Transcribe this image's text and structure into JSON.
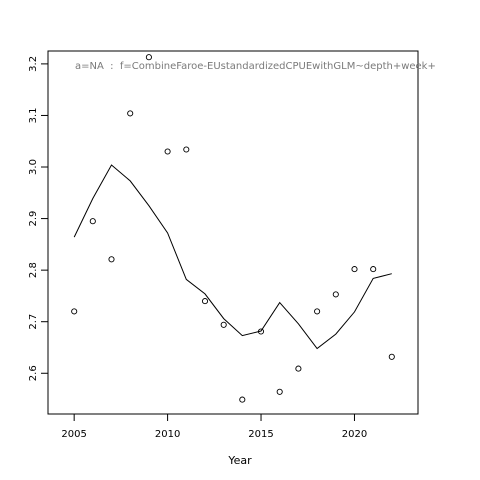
{
  "chart_data": {
    "type": "scatter",
    "xlabel": "Year",
    "ylabel": "",
    "annotation": "a=NA  :  f=CombineFaroe-EUstandardizedCPUEwithGLM~depth+week+",
    "xlim": [
      2003.6,
      2023.4
    ],
    "ylim": [
      2.521,
      3.225
    ],
    "x_ticks": [
      2005,
      2010,
      2015,
      2020
    ],
    "y_ticks": [
      2.6,
      2.7,
      2.8,
      2.9,
      3.0,
      3.1,
      3.2
    ],
    "x_tick_labels": [
      "2005",
      "2010",
      "2015",
      "2020"
    ],
    "y_tick_labels": [
      "2.6",
      "2.7",
      "2.8",
      "2.9",
      "3.0",
      "3.1",
      "3.2"
    ],
    "series": [
      {
        "type": "scatter",
        "marker": "open-circle",
        "x": [
          2005,
          2006,
          2007,
          2008,
          2009,
          2010,
          2011,
          2012,
          2013,
          2014,
          2015,
          2016,
          2017,
          2018,
          2019,
          2020,
          2021,
          2022
        ],
        "y": [
          2.72,
          2.895,
          2.821,
          3.104,
          3.213,
          3.03,
          3.034,
          2.74,
          2.694,
          2.549,
          2.681,
          2.564,
          2.609,
          2.72,
          2.753,
          2.802,
          2.802,
          2.632
        ]
      },
      {
        "type": "line",
        "x": [
          2005,
          2006,
          2007,
          2008,
          2009,
          2010,
          2011,
          2012,
          2013,
          2014,
          2015,
          2016,
          2017,
          2018,
          2019,
          2020,
          2021,
          2022
        ],
        "y": [
          2.864,
          2.939,
          3.004,
          2.973,
          2.925,
          2.872,
          2.782,
          2.754,
          2.706,
          2.673,
          2.682,
          2.737,
          2.696,
          2.648,
          2.676,
          2.719,
          2.784,
          2.793
        ]
      }
    ],
    "grid": false,
    "box": true
  }
}
